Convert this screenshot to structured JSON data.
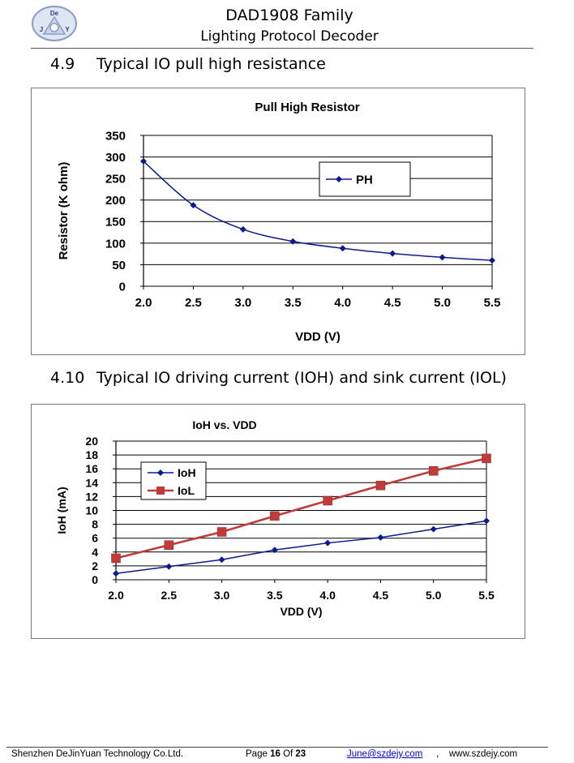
{
  "header": {
    "logo_letters": [
      "De",
      "J",
      "Y"
    ],
    "title": "DAD1908 Family",
    "subtitle": "Lighting Protocol Decoder"
  },
  "sections": [
    {
      "number": "4.9",
      "title": "Typical IO pull high resistance"
    },
    {
      "number": "4.10",
      "title": "Typical IO driving current (IOH) and sink current (IOL)"
    }
  ],
  "colors": {
    "series_blue": "#0d1a8c",
    "series_red": "#c23b3b",
    "grid": "#000000"
  },
  "chart_data": [
    {
      "type": "line",
      "title": "Pull High Resistor",
      "xlabel": "VDD (V)",
      "ylabel": "Resistor (K ohm)",
      "x": [
        2.0,
        2.5,
        3.0,
        3.5,
        4.0,
        4.5,
        5.0,
        5.5
      ],
      "x_tick_labels": [
        "2.0",
        "2.5",
        "3.0",
        "3.5",
        "4.0",
        "4.5",
        "5.0",
        "5.5"
      ],
      "y_ticks": [
        0,
        50,
        100,
        150,
        200,
        250,
        300,
        350
      ],
      "xlim": [
        2.0,
        5.5
      ],
      "ylim": [
        0,
        350
      ],
      "grid": true,
      "legend": "top-right",
      "series": [
        {
          "name": "PH",
          "values": [
            290,
            188,
            132,
            104,
            88,
            76,
            67,
            60
          ],
          "color": "#0d1a8c",
          "marker": "diamond",
          "smooth": true
        }
      ]
    },
    {
      "type": "line",
      "title": "IoH vs. VDD",
      "xlabel": "VDD (V)",
      "ylabel": "IoH (mA)",
      "x": [
        2.0,
        2.5,
        3.0,
        3.5,
        4.0,
        4.5,
        5.0,
        5.5
      ],
      "x_tick_labels": [
        "2.0",
        "2.5",
        "3.0",
        "3.5",
        "4.0",
        "4.5",
        "5.0",
        "5.5"
      ],
      "y_ticks": [
        0,
        2,
        4,
        6,
        8,
        10,
        12,
        14,
        16,
        18,
        20
      ],
      "xlim": [
        2.0,
        5.5
      ],
      "ylim": [
        0,
        20
      ],
      "grid": true,
      "legend": "top-left",
      "series": [
        {
          "name": "IoH",
          "values": [
            0.9,
            1.9,
            2.9,
            4.3,
            5.3,
            6.1,
            7.3,
            8.5
          ],
          "color": "#0d1a8c",
          "marker": "diamond",
          "smooth": false
        },
        {
          "name": "IoL",
          "values": [
            3.1,
            5.0,
            6.9,
            9.2,
            11.4,
            13.6,
            15.7,
            17.5
          ],
          "color": "#c23b3b",
          "marker": "square",
          "smooth": false
        }
      ]
    }
  ],
  "footer": {
    "company": "Shenzhen DeJinYuan Technology Co.Ltd.",
    "page_label": "Page",
    "page_number": "16",
    "of_label": "Of",
    "page_total": "23",
    "email": "June@szdejy.com",
    "comma": ",",
    "website": "www.szdejy.com"
  }
}
